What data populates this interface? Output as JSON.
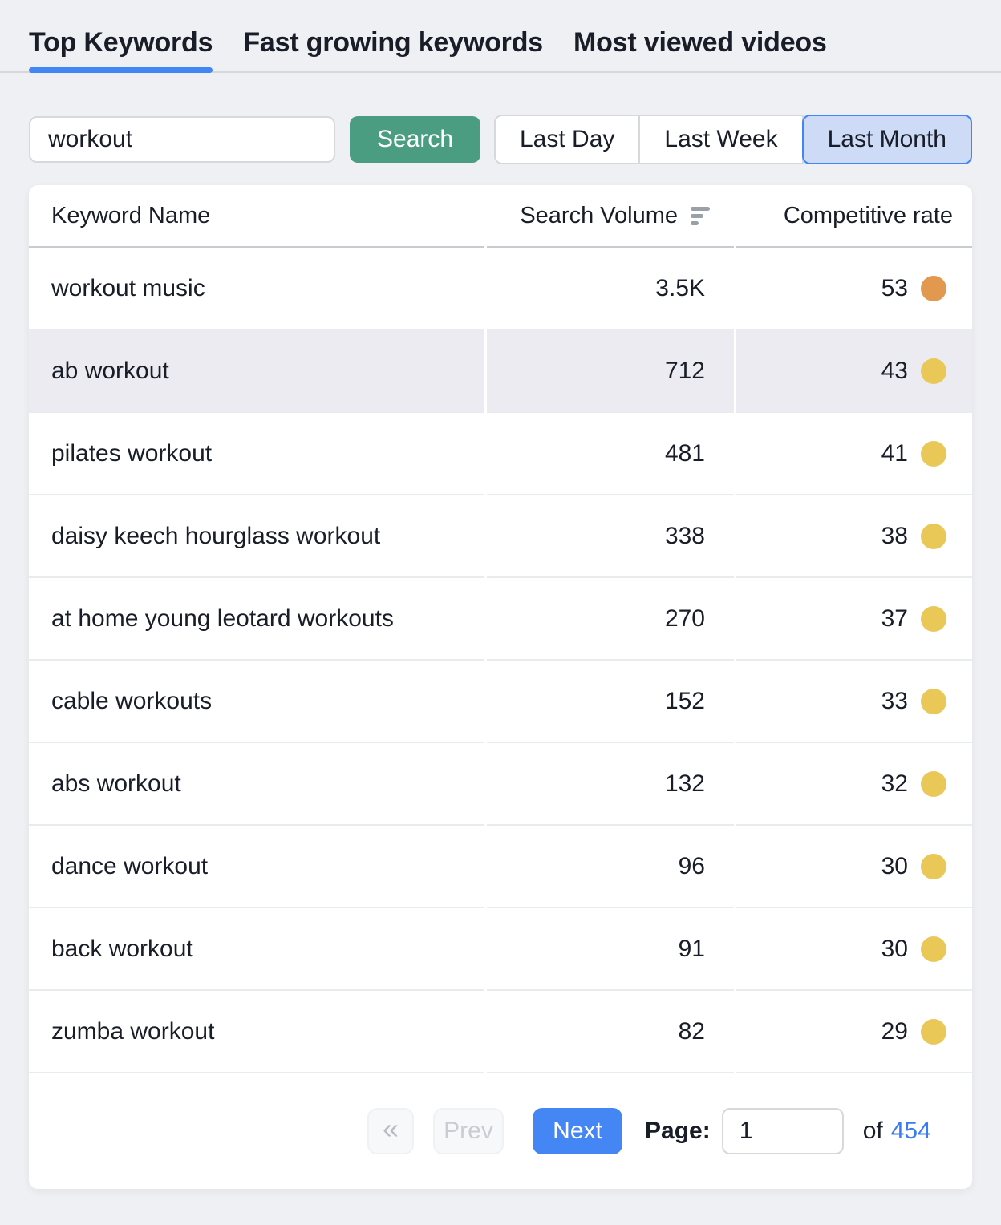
{
  "tabs": {
    "items": [
      {
        "label": "Top Keywords",
        "active": true
      },
      {
        "label": "Fast growing keywords",
        "active": false
      },
      {
        "label": "Most viewed videos",
        "active": false
      }
    ]
  },
  "search": {
    "value": "workout",
    "button_label": "Search"
  },
  "time_filters": {
    "items": [
      {
        "label": "Last Day",
        "selected": false
      },
      {
        "label": "Last Week",
        "selected": false
      },
      {
        "label": "Last Month",
        "selected": true
      }
    ]
  },
  "table": {
    "columns": [
      "Keyword Name",
      "Search Volume",
      "Competitive rate"
    ],
    "rows": [
      {
        "keyword": "workout music",
        "search_volume": "3.5K",
        "competitive_rate": "53",
        "dot_color": "#e2984e",
        "highlighted": false
      },
      {
        "keyword": "ab workout",
        "search_volume": "712",
        "competitive_rate": "43",
        "dot_color": "#eac857",
        "highlighted": true
      },
      {
        "keyword": "pilates workout",
        "search_volume": "481",
        "competitive_rate": "41",
        "dot_color": "#eac857",
        "highlighted": false
      },
      {
        "keyword": "daisy keech hourglass workout",
        "search_volume": "338",
        "competitive_rate": "38",
        "dot_color": "#eac857",
        "highlighted": false
      },
      {
        "keyword": "at home young leotard workouts",
        "search_volume": "270",
        "competitive_rate": "37",
        "dot_color": "#eac857",
        "highlighted": false
      },
      {
        "keyword": "cable workouts",
        "search_volume": "152",
        "competitive_rate": "33",
        "dot_color": "#eac857",
        "highlighted": false
      },
      {
        "keyword": "abs workout",
        "search_volume": "132",
        "competitive_rate": "32",
        "dot_color": "#eac857",
        "highlighted": false
      },
      {
        "keyword": "dance workout",
        "search_volume": "96",
        "competitive_rate": "30",
        "dot_color": "#eac857",
        "highlighted": false
      },
      {
        "keyword": "back workout",
        "search_volume": "91",
        "competitive_rate": "30",
        "dot_color": "#eac857",
        "highlighted": false
      },
      {
        "keyword": "zumba workout",
        "search_volume": "82",
        "competitive_rate": "29",
        "dot_color": "#eac857",
        "highlighted": false
      }
    ]
  },
  "pagination": {
    "first_label": "«",
    "prev_label": "Prev",
    "next_label": "Next",
    "page_label": "Page:",
    "page_value": "1",
    "of_label": "of",
    "total_pages": "454"
  },
  "colors": {
    "accent_blue": "#4285f4",
    "search_green": "#4a9d81",
    "selected_filter_bg": "#cddbf6",
    "dot_orange": "#e2984e",
    "dot_yellow": "#eac857",
    "highlight_row_bg": "#ebebf1"
  }
}
